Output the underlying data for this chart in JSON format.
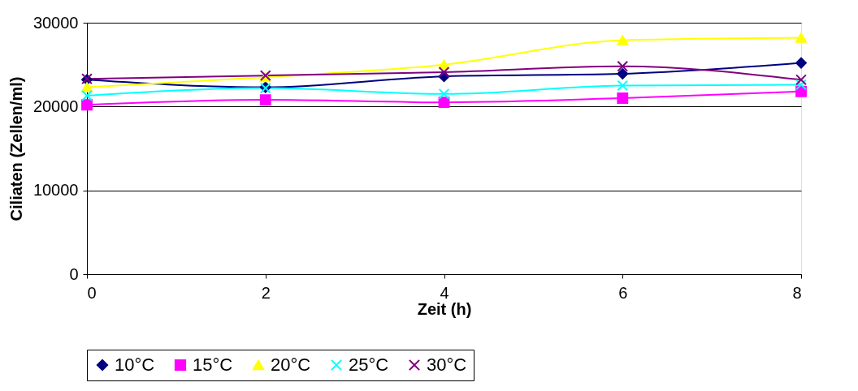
{
  "chart_data": {
    "type": "line",
    "xlabel": "Zeit (h)",
    "ylabel": "Ciliaten (Zellen/ml)",
    "x": [
      0,
      2,
      4,
      6,
      8
    ],
    "xlim": [
      0,
      8
    ],
    "xticks": [
      0,
      2,
      4,
      6,
      8
    ],
    "ylim": [
      0,
      30000
    ],
    "yticks": [
      0,
      10000,
      20000,
      30000
    ],
    "grid": "y",
    "legend": "bottom",
    "series": [
      {
        "name": "10°C",
        "color": "#000080",
        "marker": "diamond",
        "values": [
          23200,
          22300,
          23600,
          23900,
          25200
        ]
      },
      {
        "name": "15°C",
        "color": "#ff00ff",
        "marker": "square",
        "values": [
          20200,
          20800,
          20500,
          21000,
          21800
        ]
      },
      {
        "name": "20°C",
        "color": "#ffff00",
        "marker": "triangle",
        "values": [
          22300,
          23500,
          25000,
          27900,
          28200
        ]
      },
      {
        "name": "25°C",
        "color": "#00ffff",
        "marker": "cross",
        "values": [
          21300,
          22200,
          21500,
          22500,
          22600
        ]
      },
      {
        "name": "30°C",
        "color": "#800080",
        "marker": "cross",
        "values": [
          23300,
          23700,
          24100,
          24800,
          23200
        ]
      }
    ]
  }
}
